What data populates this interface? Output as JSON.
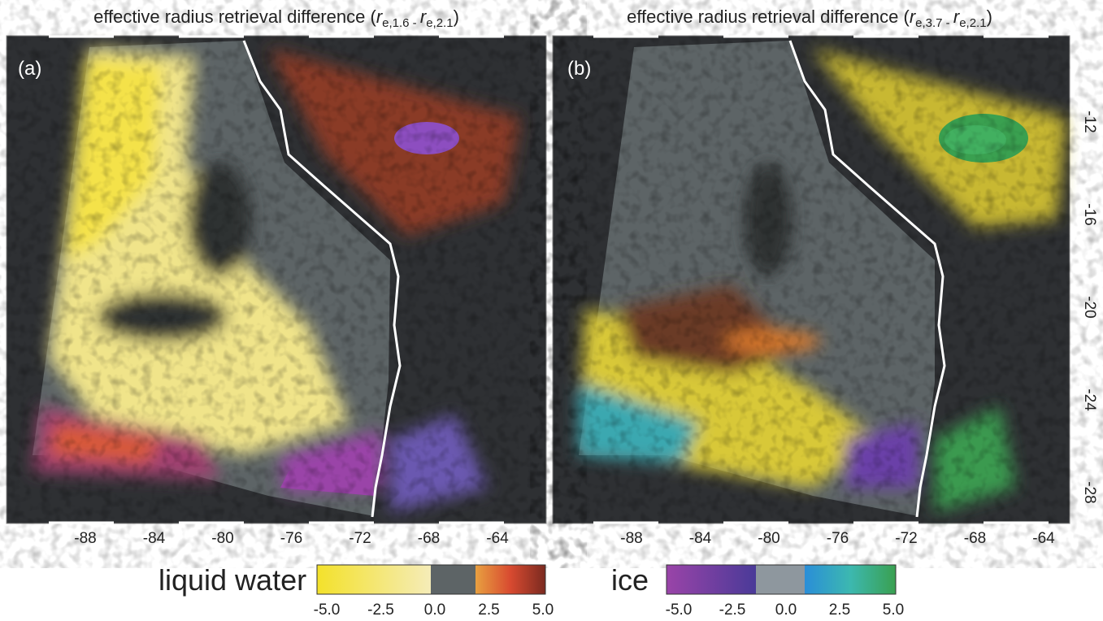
{
  "panels": [
    {
      "label": "(a)",
      "title": {
        "lead": "effective radius retrieval difference (",
        "symbol1": "r",
        "sub1": "e,1.6",
        "minus": " - ",
        "symbol2": "r",
        "sub2": "e,2.1",
        "tail": ")"
      }
    },
    {
      "label": "(b)",
      "title": {
        "lead": "effective radius retrieval difference (",
        "symbol1": "r",
        "sub1": "e,3.7",
        "minus": " - ",
        "symbol2": "r",
        "sub2": "e,2.1",
        "tail": ")"
      }
    }
  ],
  "lon_ticks": [
    "-88",
    "-84",
    "-80",
    "-76",
    "-72",
    "-68",
    "-64"
  ],
  "lat_ticks": [
    "-12",
    "-16",
    "-20",
    "-24",
    "-28"
  ],
  "colorbars": [
    {
      "label": "liquid water",
      "ticks": [
        "-5.0",
        "-2.5",
        "0.0",
        "2.5",
        "5.0"
      ]
    },
    {
      "label": "ice",
      "ticks": [
        "-5.0",
        "-2.5",
        "0.0",
        "2.5",
        "5.0"
      ]
    }
  ]
}
